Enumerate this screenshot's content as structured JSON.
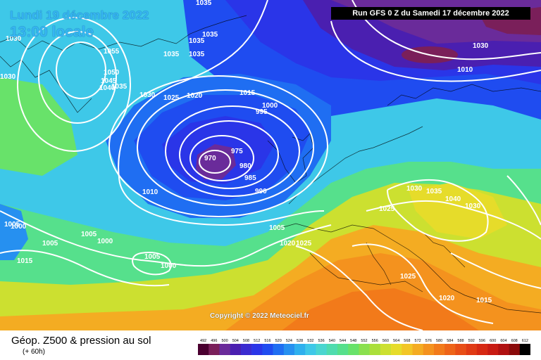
{
  "header": {
    "date_label": "Lundi 19 décembre 2022",
    "time_label": "13:00 locale",
    "run_label": "Run GFS 0 Z du Samedi 17 décembre 2022"
  },
  "footer": {
    "title": "Géop. Z500 & pression au sol",
    "subtitle": "(+ 60h)",
    "copyright": "Copyright © 2022 Meteociel.fr"
  },
  "legend": {
    "values": [
      "492",
      "496",
      "500",
      "504",
      "508",
      "512",
      "516",
      "520",
      "524",
      "528",
      "532",
      "536",
      "540",
      "544",
      "548",
      "552",
      "556",
      "560",
      "564",
      "568",
      "572",
      "576",
      "580",
      "584",
      "588",
      "592",
      "596",
      "600",
      "604",
      "608",
      "612"
    ],
    "colors": [
      "#4a0030",
      "#7a1f5a",
      "#6a2b9a",
      "#4a1fb0",
      "#3a2bd0",
      "#2a35e8",
      "#1f4cf0",
      "#1f6ef2",
      "#2690f0",
      "#2eb0ee",
      "#3ec8e8",
      "#4ad6d0",
      "#4fdcae",
      "#56e08c",
      "#68e26a",
      "#8ae04e",
      "#aadf3a",
      "#cce030",
      "#e6dc2a",
      "#f2c626",
      "#f4ac22",
      "#f4921e",
      "#f27a1a",
      "#ee6418",
      "#e84e16",
      "#e03a14",
      "#d62812",
      "#c81a12",
      "#b01010",
      "#8a0a0a",
      "#000000"
    ]
  },
  "isobars": [
    {
      "text": "1035"
    },
    {
      "text": "1030"
    },
    {
      "text": "1035"
    },
    {
      "text": "1035"
    },
    {
      "text": "1035"
    },
    {
      "text": "1035"
    },
    {
      "text": "1030"
    },
    {
      "text": "1055"
    },
    {
      "text": "1050"
    },
    {
      "text": "1045"
    },
    {
      "text": "1040"
    },
    {
      "text": "1035"
    },
    {
      "text": "1030"
    },
    {
      "text": "1025"
    },
    {
      "text": "1020"
    },
    {
      "text": "1015"
    },
    {
      "text": "1000"
    },
    {
      "text": "995"
    },
    {
      "text": "975"
    },
    {
      "text": "970"
    },
    {
      "text": "980"
    },
    {
      "text": "985"
    },
    {
      "text": "990"
    },
    {
      "text": "1010"
    },
    {
      "text": "1005"
    },
    {
      "text": "1000"
    },
    {
      "text": "1005"
    },
    {
      "text": "1005"
    },
    {
      "text": "1000"
    },
    {
      "text": "1005"
    },
    {
      "text": "1000"
    },
    {
      "text": "1015"
    },
    {
      "text": "1020"
    },
    {
      "text": "1025"
    },
    {
      "text": "1030"
    },
    {
      "text": "1025"
    },
    {
      "text": "1035"
    },
    {
      "text": "1040"
    },
    {
      "text": "1030"
    },
    {
      "text": "1025"
    },
    {
      "text": "1020"
    },
    {
      "text": "1015"
    },
    {
      "text": "1005"
    },
    {
      "text": "1010"
    },
    {
      "text": "1030"
    }
  ]
}
